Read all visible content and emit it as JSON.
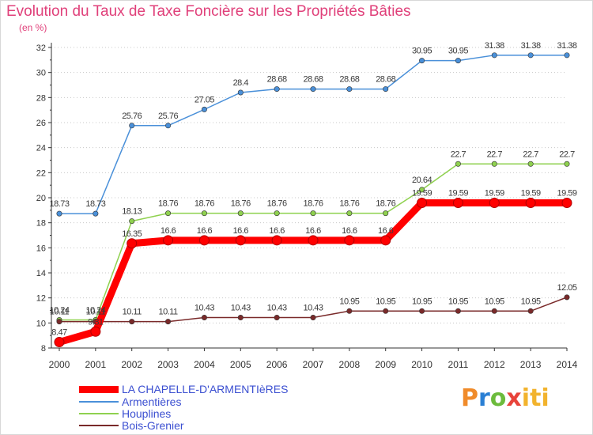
{
  "title": "Evolution du Taux de Taxe Foncière sur les Propriétés Bâties",
  "unit_label": "(en %)",
  "logo_text": "Proxiti",
  "colors": {
    "title": "#e0407a",
    "axis": "#333333",
    "grid": "#c8c8c8",
    "legend_text": "#3b4fd1"
  },
  "chart_data": {
    "type": "line",
    "x": [
      "2000",
      "2001",
      "2002",
      "2003",
      "2004",
      "2005",
      "2006",
      "2007",
      "2008",
      "2009",
      "2010",
      "2011",
      "2012",
      "2013",
      "2014"
    ],
    "ylim": [
      8,
      32
    ],
    "yticks": [
      8,
      10,
      12,
      14,
      16,
      18,
      20,
      22,
      24,
      26,
      28,
      30,
      32
    ],
    "grid": "horizontal dotted",
    "legend_placement": "bottom-left",
    "series": [
      {
        "name": "LA CHAPELLE-D'ARMENTIèRES",
        "color": "#ff0000",
        "emphasis": true,
        "values": [
          8.47,
          9.31,
          16.35,
          16.6,
          16.6,
          16.6,
          16.6,
          16.6,
          16.6,
          16.6,
          19.59,
          19.59,
          19.59,
          19.59,
          19.59
        ],
        "labels": [
          "8.47",
          "9.31",
          "16.35",
          "16.6",
          "16.6",
          "16.6",
          "16.6",
          "16.6",
          "16.6",
          "16.6",
          "19.59",
          "19.59",
          "19.59",
          "19.59",
          "19.59"
        ]
      },
      {
        "name": "Armentières",
        "color": "#4a90d9",
        "emphasis": false,
        "values": [
          18.73,
          18.73,
          25.76,
          25.76,
          27.05,
          28.4,
          28.68,
          28.68,
          28.68,
          28.68,
          30.95,
          30.95,
          31.38,
          31.38,
          31.38
        ],
        "labels": [
          "18.73",
          "18.73",
          "25.76",
          "25.76",
          "27.05",
          "28.4",
          "28.68",
          "28.68",
          "28.68",
          "28.68",
          "30.95",
          "30.95",
          "31.38",
          "31.38",
          "31.38"
        ]
      },
      {
        "name": "Houplines",
        "color": "#8fd14f",
        "emphasis": false,
        "values": [
          10.24,
          10.24,
          18.13,
          18.76,
          18.76,
          18.76,
          18.76,
          18.76,
          18.76,
          18.76,
          20.64,
          22.7,
          22.7,
          22.7,
          22.7
        ],
        "labels": [
          "10.24",
          "10.24",
          "18.13",
          "18.76",
          "18.76",
          "18.76",
          "18.76",
          "18.76",
          "18.76",
          "18.76",
          "20.64",
          "22.7",
          "22.7",
          "22.7",
          "22.7"
        ]
      },
      {
        "name": "Bois-Grenier",
        "color": "#7a2a2a",
        "emphasis": false,
        "values": [
          10.11,
          10.11,
          10.11,
          10.11,
          10.43,
          10.43,
          10.43,
          10.43,
          10.95,
          10.95,
          10.95,
          10.95,
          10.95,
          10.95,
          12.05
        ],
        "labels": [
          "10.11",
          "10.11",
          "10.11",
          "10.11",
          "10.43",
          "10.43",
          "10.43",
          "10.43",
          "10.95",
          "10.95",
          "10.95",
          "10.95",
          "10.95",
          "10.95",
          "12.05"
        ]
      }
    ]
  }
}
